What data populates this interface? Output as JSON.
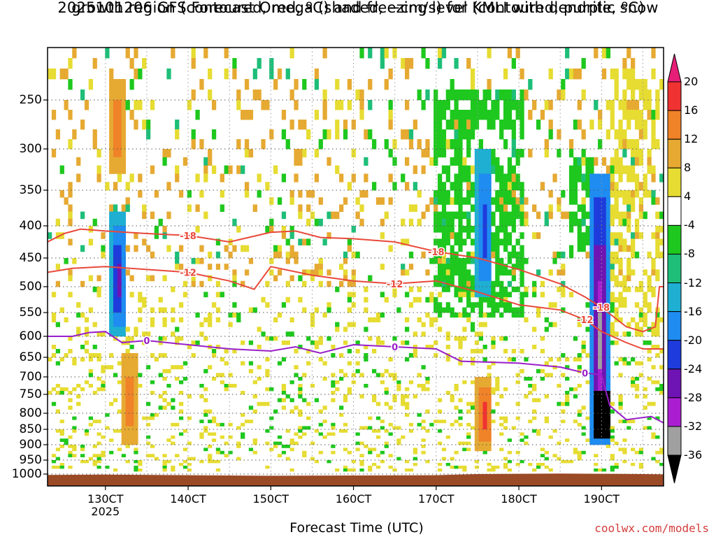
{
  "title_line1": "2025101206 GFS Forecast Omega (shaded, −cm/s) for KMLI with dendritic snow",
  "title_line2": "growth region (contoured, red, ºC) and freezing level (contoured, purple, ºC)",
  "x_axis_label": "Forecast Time (UTC)",
  "credit": "coolwx.com/models",
  "colors": {
    "terrain": "#9b4a26",
    "dgz_contour": "#e8493a",
    "freezing_contour": "#9a1fc9",
    "grid": "#555555"
  },
  "chart_data": {
    "type": "heatmap",
    "title": "2025101206 GFS Forecast Omega (shaded, −cm/s) for KMLI with dendritic snow growth region (contoured, red, ºC) and freezing level (contoured, purple, ºC)",
    "xlabel": "Forecast Time (UTC)",
    "ylabel": "",
    "x_ticks": [
      "130CT",
      "140CT",
      "150CT",
      "160CT",
      "170CT",
      "180CT",
      "190CT"
    ],
    "x_subtick": "2025",
    "y_ticks": [
      250,
      300,
      350,
      400,
      450,
      500,
      550,
      600,
      650,
      700,
      750,
      800,
      850,
      900,
      950,
      1000
    ],
    "y_range_hpa": [
      200,
      1020
    ],
    "x_range_days": [
      12.3,
      19.75
    ],
    "colorbar": {
      "labels": [
        20,
        16,
        12,
        8,
        4,
        -4,
        -8,
        -12,
        -16,
        -20,
        -24,
        -28,
        -32,
        -36
      ],
      "bins": [
        {
          "min": 20,
          "max": null,
          "color": "#e61e78"
        },
        {
          "min": 16,
          "max": 20,
          "color": "#f03232"
        },
        {
          "min": 12,
          "max": 16,
          "color": "#f08228"
        },
        {
          "min": 8,
          "max": 12,
          "color": "#e6aa32"
        },
        {
          "min": 4,
          "max": 8,
          "color": "#e6dc32"
        },
        {
          "min": -4,
          "max": 4,
          "color": "#ffffff"
        },
        {
          "min": -8,
          "max": -4,
          "color": "#1ec81e"
        },
        {
          "min": -12,
          "max": -8,
          "color": "#1ebe78"
        },
        {
          "min": -16,
          "max": -12,
          "color": "#1eafd2"
        },
        {
          "min": -20,
          "max": -16,
          "color": "#1e8cf0"
        },
        {
          "min": -24,
          "max": -20,
          "color": "#1e3cdc"
        },
        {
          "min": -28,
          "max": -24,
          "color": "#6e14b4"
        },
        {
          "min": -32,
          "max": -28,
          "color": "#aa1ed2"
        },
        {
          "min": -36,
          "max": -32,
          "color": "#a0a0a0"
        },
        {
          "min": null,
          "max": -36,
          "color": "#000000"
        }
      ]
    },
    "contours": [
      {
        "label": "-18",
        "color": "#e8493a",
        "points": [
          [
            12.3,
            425
          ],
          [
            12.5,
            412
          ],
          [
            12.7,
            405
          ],
          [
            13.0,
            408
          ],
          [
            13.5,
            412
          ],
          [
            14.0,
            415
          ],
          [
            14.5,
            425
          ],
          [
            15.0,
            410
          ],
          [
            15.3,
            408
          ],
          [
            15.6,
            418
          ],
          [
            16.0,
            420
          ],
          [
            16.5,
            425
          ],
          [
            17.0,
            440
          ],
          [
            17.5,
            450
          ],
          [
            18.0,
            470
          ],
          [
            18.5,
            495
          ],
          [
            18.8,
            520
          ],
          [
            19.0,
            540
          ],
          [
            19.3,
            580
          ],
          [
            19.5,
            590
          ],
          [
            19.65,
            580
          ],
          [
            19.7,
            500
          ],
          [
            19.75,
            500
          ]
        ]
      },
      {
        "label": "-12",
        "color": "#e8493a",
        "points": [
          [
            12.3,
            475
          ],
          [
            12.6,
            468
          ],
          [
            13.0,
            465
          ],
          [
            13.5,
            470
          ],
          [
            14.0,
            475
          ],
          [
            14.5,
            490
          ],
          [
            14.8,
            505
          ],
          [
            15.0,
            465
          ],
          [
            15.5,
            480
          ],
          [
            16.0,
            490
          ],
          [
            16.5,
            495
          ],
          [
            17.0,
            490
          ],
          [
            17.5,
            510
          ],
          [
            18.0,
            535
          ],
          [
            18.5,
            545
          ],
          [
            18.8,
            565
          ],
          [
            19.0,
            590
          ],
          [
            19.3,
            615
          ],
          [
            19.5,
            630
          ],
          [
            19.75,
            630
          ]
        ]
      },
      {
        "label": "0",
        "color": "#9a1fc9",
        "points": [
          [
            12.3,
            600
          ],
          [
            12.6,
            600
          ],
          [
            12.8,
            592
          ],
          [
            13.0,
            590
          ],
          [
            13.2,
            615
          ],
          [
            13.5,
            610
          ],
          [
            14.0,
            620
          ],
          [
            14.5,
            630
          ],
          [
            15.0,
            635
          ],
          [
            15.3,
            625
          ],
          [
            15.6,
            640
          ],
          [
            16.0,
            620
          ],
          [
            16.5,
            625
          ],
          [
            17.0,
            630
          ],
          [
            17.3,
            660
          ],
          [
            18.0,
            665
          ],
          [
            18.5,
            675
          ],
          [
            18.8,
            690
          ],
          [
            19.0,
            695
          ],
          [
            19.1,
            780
          ],
          [
            19.3,
            820
          ],
          [
            19.6,
            810
          ],
          [
            19.75,
            830
          ]
        ]
      }
    ],
    "omega_features": [
      {
        "x": 13.15,
        "p_top": 380,
        "p_bot": 600,
        "vmin": -28,
        "vmax": -12
      },
      {
        "x": 13.15,
        "p_top": 230,
        "p_bot": 330,
        "vmin": 8,
        "vmax": 16
      },
      {
        "x": 13.3,
        "p_top": 640,
        "p_bot": 900,
        "vmin": 8,
        "vmax": 16
      },
      {
        "x": 17.58,
        "p_top": 300,
        "p_bot": 520,
        "vmin": -24,
        "vmax": -12
      },
      {
        "x": 17.58,
        "p_top": 700,
        "p_bot": 920,
        "vmin": 8,
        "vmax": 20
      },
      {
        "x": 18.98,
        "p_top": 330,
        "p_bot": 900,
        "vmin": -36,
        "vmax": -16
      },
      {
        "x": 19.0,
        "p_top": 740,
        "p_bot": 880,
        "vmin": -40,
        "vmax": -36
      }
    ]
  }
}
